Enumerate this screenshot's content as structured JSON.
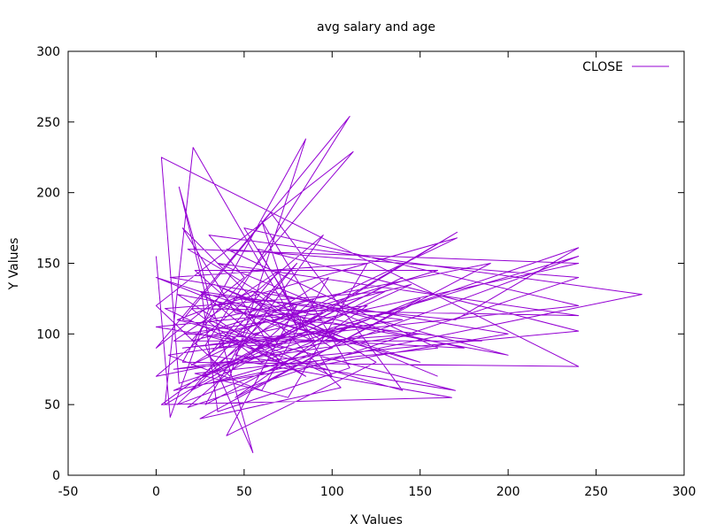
{
  "chart_data": {
    "type": "line",
    "title": "avg salary and age",
    "xlabel": "X Values",
    "ylabel": "Y Values",
    "xlim": [
      -50,
      300
    ],
    "ylim": [
      0,
      300
    ],
    "x_ticks": [
      "-50",
      "0",
      "50",
      "100",
      "150",
      "200",
      "250",
      "300"
    ],
    "y_ticks": [
      "0",
      "50",
      "100",
      "150",
      "200",
      "250",
      "300"
    ],
    "grid": false,
    "legend_position": "top-right",
    "series": [
      {
        "name": "CLOSE",
        "color": "#9400d3",
        "points": [
          [
            0,
            155
          ],
          [
            8,
            41
          ],
          [
            30,
            118
          ],
          [
            13,
            204
          ],
          [
            55,
            16
          ],
          [
            28,
            92
          ],
          [
            110,
            254
          ],
          [
            15,
            110
          ],
          [
            70,
            96
          ],
          [
            171,
            172
          ],
          [
            5,
            50
          ],
          [
            21,
            232
          ],
          [
            80,
            105
          ],
          [
            60,
            180
          ],
          [
            110,
            76
          ],
          [
            35,
            45
          ],
          [
            26,
            128
          ],
          [
            170,
            110
          ],
          [
            240,
            161
          ],
          [
            13,
            65
          ],
          [
            3,
            225
          ],
          [
            240,
            77
          ],
          [
            15,
            80
          ],
          [
            85,
            238
          ],
          [
            42,
            70
          ],
          [
            0,
            120
          ],
          [
            112,
            229
          ],
          [
            20,
            95
          ],
          [
            145,
            135
          ],
          [
            10,
            60
          ],
          [
            276,
            128
          ],
          [
            30,
            170
          ],
          [
            50,
            140
          ],
          [
            0,
            90
          ],
          [
            65,
            186
          ],
          [
            140,
            60
          ],
          [
            25,
            100
          ],
          [
            90,
            125
          ],
          [
            18,
            48
          ],
          [
            240,
            140
          ],
          [
            40,
            160
          ],
          [
            160,
            90
          ],
          [
            22,
            72
          ],
          [
            75,
            55
          ],
          [
            120,
            150
          ],
          [
            8,
            140
          ],
          [
            200,
            100
          ],
          [
            30,
            65
          ],
          [
            100,
            90
          ],
          [
            55,
            130
          ],
          [
            12,
            110
          ],
          [
            170,
            60
          ],
          [
            45,
            85
          ],
          [
            95,
            170
          ],
          [
            0,
            70
          ],
          [
            130,
            102
          ],
          [
            35,
            150
          ],
          [
            240,
            113
          ],
          [
            20,
            118
          ],
          [
            60,
            80
          ],
          [
            150,
            125
          ],
          [
            25,
            40
          ],
          [
            105,
            62
          ],
          [
            15,
            175
          ],
          [
            45,
            115
          ],
          [
            185,
            95
          ],
          [
            10,
            95
          ],
          [
            70,
            145
          ],
          [
            30,
            85
          ],
          [
            168,
            55
          ],
          [
            3,
            50
          ],
          [
            80,
            120
          ],
          [
            40,
            28
          ],
          [
            125,
            80
          ],
          [
            18,
            160
          ],
          [
            240,
            150
          ],
          [
            55,
            100
          ],
          [
            25,
            130
          ],
          [
            140,
            110
          ],
          [
            7,
            85
          ],
          [
            60,
            60
          ],
          [
            98,
            140
          ],
          [
            20,
            78
          ],
          [
            171,
            168
          ],
          [
            35,
            120
          ],
          [
            150,
            80
          ],
          [
            0,
            140
          ],
          [
            90,
            95
          ],
          [
            50,
            175
          ],
          [
            240,
            120
          ],
          [
            15,
            90
          ],
          [
            110,
            105
          ],
          [
            28,
            50
          ],
          [
            65,
            130
          ],
          [
            200,
            85
          ],
          [
            12,
            128
          ],
          [
            85,
            70
          ],
          [
            40,
            100
          ],
          [
            160,
            145
          ],
          [
            22,
            145
          ],
          [
            72,
            90
          ],
          [
            0,
            105
          ],
          [
            120,
            120
          ],
          [
            45,
            55
          ],
          [
            190,
            150
          ],
          [
            30,
            110
          ],
          [
            100,
            70
          ],
          [
            58,
            160
          ],
          [
            240,
            102
          ],
          [
            10,
            75
          ],
          [
            150,
            100
          ],
          [
            35,
            90
          ],
          [
            80,
            150
          ],
          [
            20,
            60
          ],
          [
            130,
            130
          ],
          [
            5,
            118
          ],
          [
            70,
            80
          ],
          [
            48,
            125
          ],
          [
            175,
            90
          ],
          [
            16,
            100
          ],
          [
            95,
            115
          ],
          [
            27,
            70
          ],
          [
            140,
            140
          ],
          [
            55,
            88
          ],
          [
            240,
            155
          ],
          [
            12,
            50
          ],
          [
            62,
            110
          ],
          [
            105,
            95
          ],
          [
            33,
            135
          ],
          [
            160,
            70
          ]
        ]
      }
    ]
  }
}
